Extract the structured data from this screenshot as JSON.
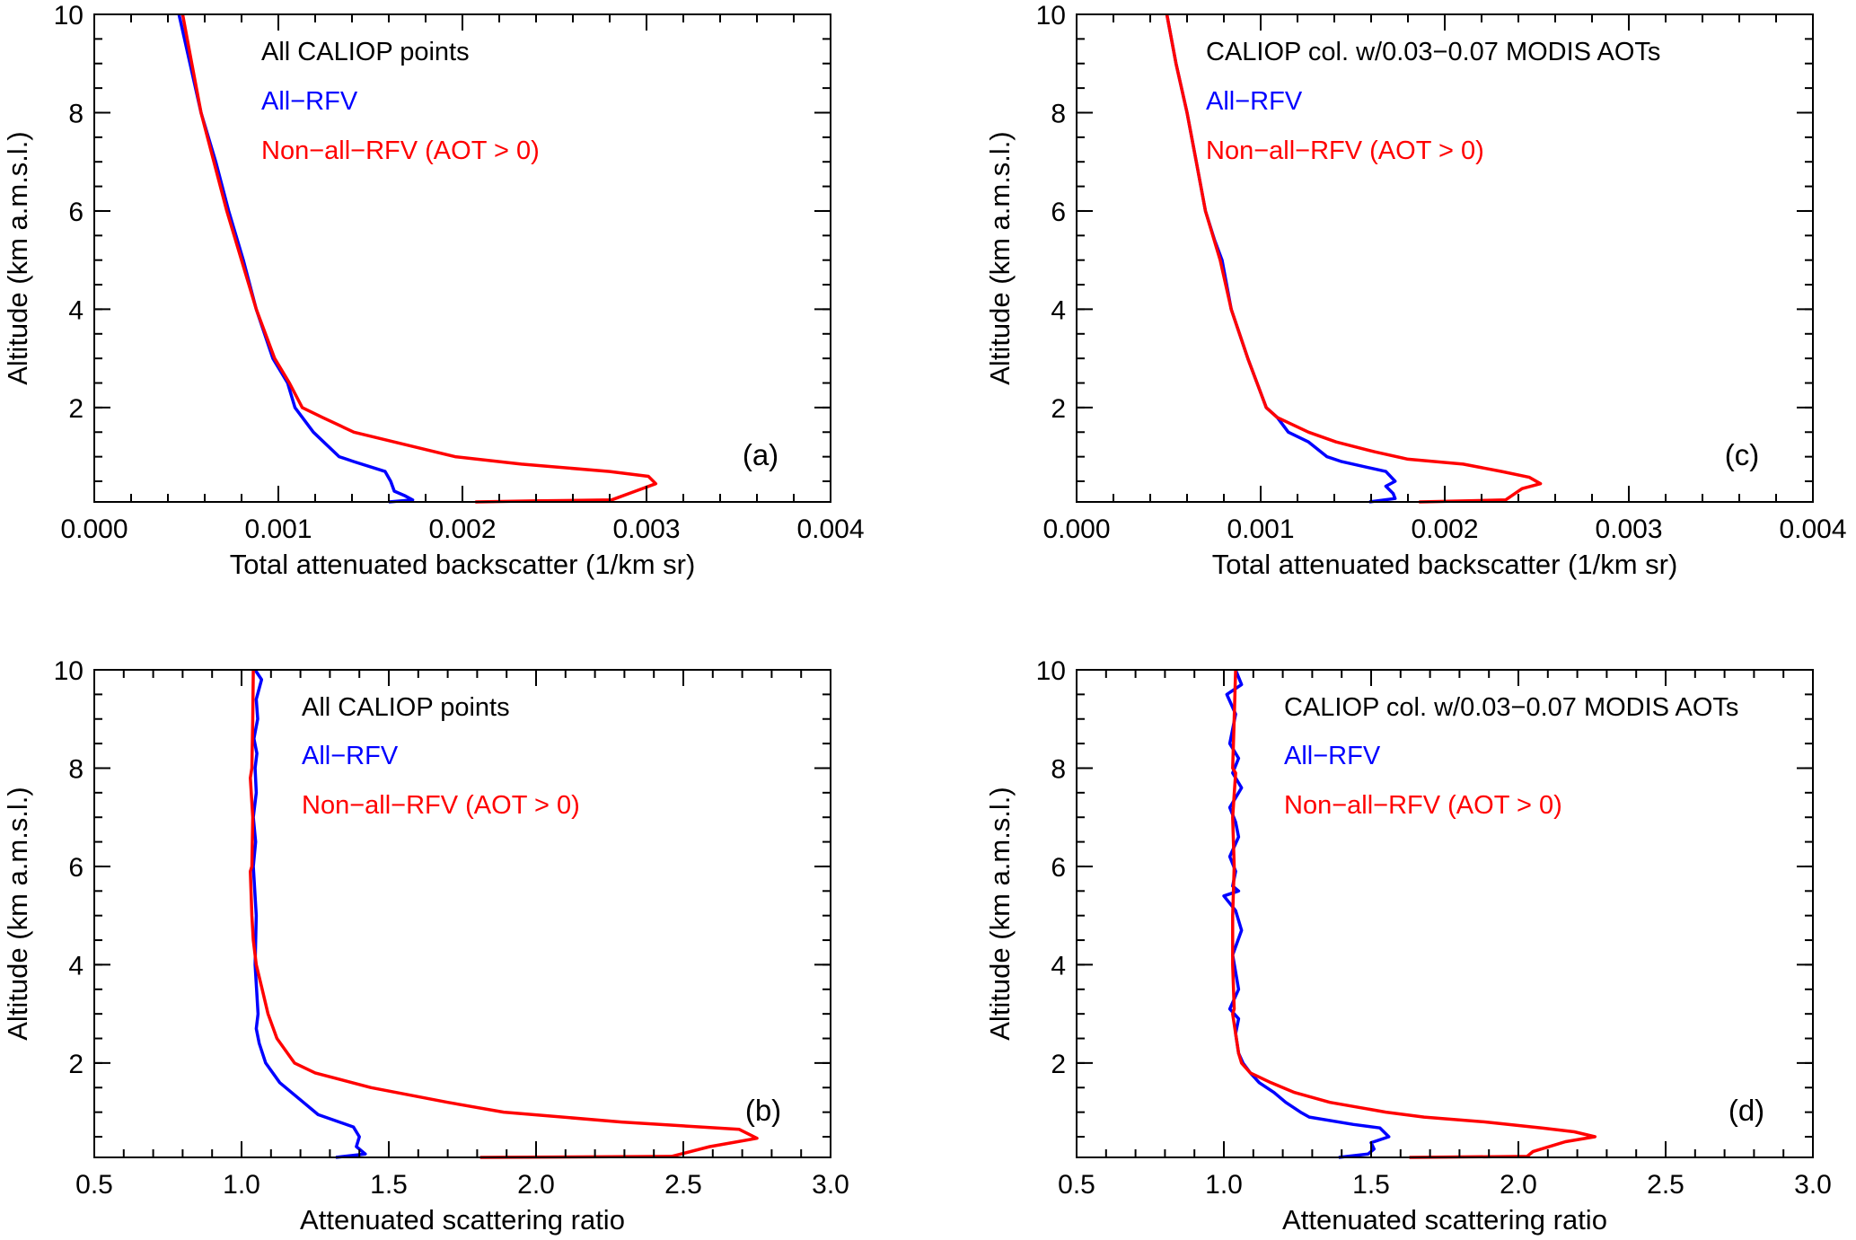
{
  "colors": {
    "all_rfv": "#0000ff",
    "non_all_rfv": "#ff0000",
    "axis": "#000000"
  },
  "chart_data": [
    {
      "id": "a",
      "type": "line",
      "panel_label": "(a)",
      "annotation": "All CALIOP points",
      "legend": [
        "All−RFV",
        "Non−all−RFV (AOT > 0)"
      ],
      "xlabel": "Total attenuated backscatter (1/km sr)",
      "ylabel": "Altitude (km a.m.s.l.)",
      "xlim": [
        0,
        0.004
      ],
      "ylim": [
        0.08,
        10
      ],
      "xticks": [
        0,
        0.001,
        0.002,
        0.003,
        0.004
      ],
      "xtick_labels": [
        "0.000",
        "0.001",
        "0.002",
        "0.003",
        "0.004"
      ],
      "xminor": 0.0002,
      "yticks": [
        2,
        4,
        6,
        8,
        10
      ],
      "ytick_labels": [
        "2",
        "4",
        "6",
        "8",
        "10"
      ],
      "yminor": 0.5,
      "series": [
        {
          "name": "All−RFV",
          "color": "#0000ff",
          "x": [
            0.00046,
            0.00052,
            0.00058,
            0.00066,
            0.00073,
            0.00081,
            0.00088,
            0.00097,
            0.00105,
            0.00109,
            0.00119,
            0.00133,
            0.00141,
            0.00158,
            0.00161,
            0.00163,
            0.00169,
            0.00173,
            0.0016
          ],
          "y": [
            10,
            9,
            8,
            7,
            6,
            5,
            4,
            3,
            2.5,
            2,
            1.5,
            1.0,
            0.9,
            0.7,
            0.5,
            0.3,
            0.2,
            0.12,
            0.08
          ]
        },
        {
          "name": "Non−all−RFV (AOT > 0)",
          "color": "#ff0000",
          "x": [
            0.00048,
            0.00053,
            0.00058,
            0.00065,
            0.00072,
            0.0008,
            0.00088,
            0.00098,
            0.00106,
            0.00113,
            0.00124,
            0.00141,
            0.00174,
            0.00196,
            0.00232,
            0.0028,
            0.00301,
            0.00305,
            0.00294,
            0.00281,
            0.00238,
            0.00207
          ],
          "y": [
            10,
            9,
            8,
            7,
            6,
            5,
            4,
            3,
            2.5,
            2,
            1.8,
            1.5,
            1.2,
            1.0,
            0.85,
            0.7,
            0.6,
            0.45,
            0.3,
            0.12,
            0.1,
            0.08
          ]
        }
      ]
    },
    {
      "id": "c",
      "type": "line",
      "panel_label": "(c)",
      "annotation": "CALIOP col. w/0.03−0.07 MODIS AOTs",
      "legend": [
        "All−RFV",
        "Non−all−RFV (AOT > 0)"
      ],
      "xlabel": "Total attenuated backscatter (1/km sr)",
      "ylabel": "Altitude (km a.m.s.l.)",
      "xlim": [
        0,
        0.004
      ],
      "ylim": [
        0.08,
        10
      ],
      "xticks": [
        0,
        0.001,
        0.002,
        0.003,
        0.004
      ],
      "xtick_labels": [
        "0.000",
        "0.001",
        "0.002",
        "0.003",
        "0.004"
      ],
      "xminor": 0.0002,
      "yticks": [
        2,
        4,
        6,
        8,
        10
      ],
      "ytick_labels": [
        "2",
        "4",
        "6",
        "8",
        "10"
      ],
      "yminor": 0.5,
      "series": [
        {
          "name": "All−RFV",
          "color": "#0000ff",
          "x": [
            0.00049,
            0.00054,
            0.0006,
            0.00065,
            0.0007,
            0.00075,
            0.00079,
            0.00084,
            0.00093,
            0.00103,
            0.00109,
            0.00115,
            0.00126,
            0.00136,
            0.00144,
            0.00168,
            0.00173,
            0.00168,
            0.00172,
            0.00173,
            0.00159
          ],
          "y": [
            10,
            9,
            8,
            7,
            6,
            5.4,
            5,
            4,
            3,
            2,
            1.8,
            1.5,
            1.3,
            1.0,
            0.9,
            0.7,
            0.5,
            0.4,
            0.25,
            0.15,
            0.08
          ]
        },
        {
          "name": "Non−all−RFV (AOT > 0)",
          "color": "#ff0000",
          "x": [
            0.00049,
            0.00054,
            0.0006,
            0.00065,
            0.0007,
            0.00078,
            0.00084,
            0.00093,
            0.00103,
            0.00109,
            0.00126,
            0.00141,
            0.00162,
            0.0018,
            0.0021,
            0.00231,
            0.00246,
            0.00252,
            0.00242,
            0.00233,
            0.00186
          ],
          "y": [
            10,
            9,
            8,
            7,
            6,
            5,
            4,
            3,
            2,
            1.8,
            1.5,
            1.3,
            1.1,
            0.95,
            0.85,
            0.7,
            0.58,
            0.45,
            0.35,
            0.12,
            0.08
          ]
        }
      ]
    },
    {
      "id": "b",
      "type": "line",
      "panel_label": "(b)",
      "annotation": "All CALIOP points",
      "legend": [
        "All−RFV",
        "Non−all−RFV (AOT > 0)"
      ],
      "xlabel": "Attenuated scattering ratio",
      "ylabel": "Altitude (km a.m.s.l.)",
      "xlim": [
        0.5,
        3.0
      ],
      "ylim": [
        0.08,
        10
      ],
      "xticks": [
        0.5,
        1.0,
        1.5,
        2.0,
        2.5,
        3.0
      ],
      "xtick_labels": [
        "0.5",
        "1.0",
        "1.5",
        "2.0",
        "2.5",
        "3.0"
      ],
      "xminor": 0.1,
      "yticks": [
        2,
        4,
        6,
        8,
        10
      ],
      "ytick_labels": [
        "2",
        "4",
        "6",
        "8",
        "10"
      ],
      "yminor": 0.5,
      "series": [
        {
          "name": "All−RFV",
          "color": "#0000ff",
          "x": [
            1.046,
            1.068,
            1.05,
            1.055,
            1.042,
            1.052,
            1.046,
            1.05,
            1.04,
            1.048,
            1.04,
            1.05,
            1.046,
            1.056,
            1.05,
            1.06,
            1.082,
            1.13,
            1.21,
            1.26,
            1.38,
            1.4,
            1.39,
            1.42,
            1.32
          ],
          "y": [
            10,
            9.8,
            9.4,
            9,
            8.6,
            8.3,
            8,
            7.5,
            7,
            6.5,
            6,
            5,
            4,
            3,
            2.7,
            2.4,
            2,
            1.6,
            1.2,
            0.95,
            0.7,
            0.5,
            0.3,
            0.15,
            0.08
          ]
        },
        {
          "name": "Non−all−RFV (AOT > 0)",
          "color": "#ff0000",
          "x": [
            1.04,
            1.038,
            1.035,
            1.03,
            1.038,
            1.035,
            1.03,
            1.035,
            1.04,
            1.05,
            1.07,
            1.09,
            1.12,
            1.18,
            1.25,
            1.44,
            1.7,
            1.89,
            2.29,
            2.69,
            2.75,
            2.59,
            2.46,
            1.81
          ],
          "y": [
            10,
            9,
            8,
            7.8,
            7,
            6,
            5.9,
            5,
            4.5,
            4,
            3.5,
            3,
            2.5,
            2,
            1.8,
            1.5,
            1.2,
            1.0,
            0.8,
            0.65,
            0.47,
            0.3,
            0.1,
            0.08
          ]
        }
      ]
    },
    {
      "id": "d",
      "type": "line",
      "panel_label": "(d)",
      "annotation": "CALIOP col. w/0.03−0.07 MODIS AOTs",
      "legend": [
        "All−RFV",
        "Non−all−RFV (AOT > 0)"
      ],
      "xlabel": "Attenuated scattering ratio",
      "ylabel": "Altitude (km a.m.s.l.)",
      "xlim": [
        0.5,
        3.0
      ],
      "ylim": [
        0.08,
        10
      ],
      "xticks": [
        0.5,
        1.0,
        1.5,
        2.0,
        2.5,
        3.0
      ],
      "xtick_labels": [
        "0.5",
        "1.0",
        "1.5",
        "2.0",
        "2.5",
        "3.0"
      ],
      "xminor": 0.1,
      "yticks": [
        2,
        4,
        6,
        8,
        10
      ],
      "ytick_labels": [
        "2",
        "4",
        "6",
        "8",
        "10"
      ],
      "yminor": 0.5,
      "series": [
        {
          "name": "All−RFV",
          "color": "#0000ff",
          "x": [
            1.04,
            1.06,
            1.01,
            1.04,
            1.02,
            1.05,
            1.03,
            1.06,
            1.02,
            1.04,
            1.05,
            1.02,
            1.04,
            1.03,
            1.05,
            1.0,
            1.04,
            1.06,
            1.03,
            1.05,
            1.02,
            1.05,
            1.04,
            1.05,
            1.065,
            1.09,
            1.12,
            1.17,
            1.21,
            1.26,
            1.29,
            1.44,
            1.53,
            1.56,
            1.5,
            1.51,
            1.49,
            1.39
          ],
          "y": [
            10,
            9.7,
            9.5,
            9.1,
            8.5,
            8.2,
            7.9,
            7.6,
            7.2,
            6.9,
            6.6,
            6.2,
            5.9,
            5.6,
            5.5,
            5.4,
            5.1,
            4.7,
            4.2,
            3.5,
            3.1,
            2.9,
            2.6,
            2.2,
            2,
            1.8,
            1.6,
            1.4,
            1.2,
            1.0,
            0.9,
            0.75,
            0.68,
            0.5,
            0.38,
            0.25,
            0.15,
            0.08
          ]
        },
        {
          "name": "Non−all−RFV (AOT > 0)",
          "color": "#ff0000",
          "x": [
            1.04,
            1.035,
            1.03,
            1.04,
            1.03,
            1.035,
            1.03,
            1.03,
            1.035,
            1.03,
            1.05,
            1.06,
            1.09,
            1.16,
            1.24,
            1.36,
            1.55,
            1.68,
            1.89,
            2.08,
            2.19,
            2.26,
            2.16,
            2.05,
            2.03,
            1.63
          ],
          "y": [
            10,
            9,
            8,
            7.9,
            7,
            6,
            5,
            4,
            3.1,
            3,
            2.2,
            2,
            1.8,
            1.6,
            1.4,
            1.2,
            1.0,
            0.9,
            0.8,
            0.68,
            0.6,
            0.5,
            0.4,
            0.2,
            0.1,
            0.08
          ]
        }
      ]
    }
  ]
}
